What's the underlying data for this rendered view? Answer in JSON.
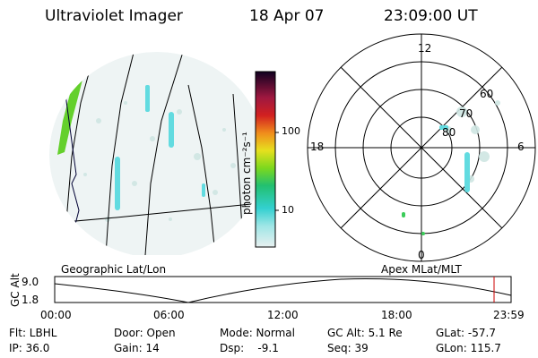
{
  "header": {
    "instrument": "Ultraviolet Imager",
    "date": "18 Apr 07",
    "time": "23:09:00 UT"
  },
  "colorbar": {
    "unit_label": "photon cm⁻²s⁻¹",
    "ticks": [
      "100",
      "10"
    ]
  },
  "polar_plot": {
    "labels": [
      "12",
      "18",
      "6",
      "0",
      "60",
      "70",
      "80"
    ]
  },
  "panels": {
    "left_label": "Geographic Lat/Lon",
    "right_label": "Apex MLat/MLT"
  },
  "altitude_strip": {
    "ylabel": "GC Alt",
    "yticks": [
      "9.0",
      "1.8"
    ],
    "xticks": [
      "00:00",
      "06:00",
      "12:00",
      "18:00",
      "23:59"
    ],
    "marker_color": "#cc0000"
  },
  "footer": {
    "row1": [
      {
        "label": "Flt: LBHL"
      },
      {
        "label": "Door: Open"
      },
      {
        "label": "Mode: Normal"
      },
      {
        "label": "GC Alt: 5.1 Re"
      },
      {
        "label": "GLat: -57.7"
      }
    ],
    "row2": [
      {
        "label": "IP: 36.0"
      },
      {
        "label": "Gain: 14"
      },
      {
        "label": "Dsp:    -9.1"
      },
      {
        "label": "Seq: 39"
      },
      {
        "label": "GLon: 115.7"
      }
    ]
  }
}
